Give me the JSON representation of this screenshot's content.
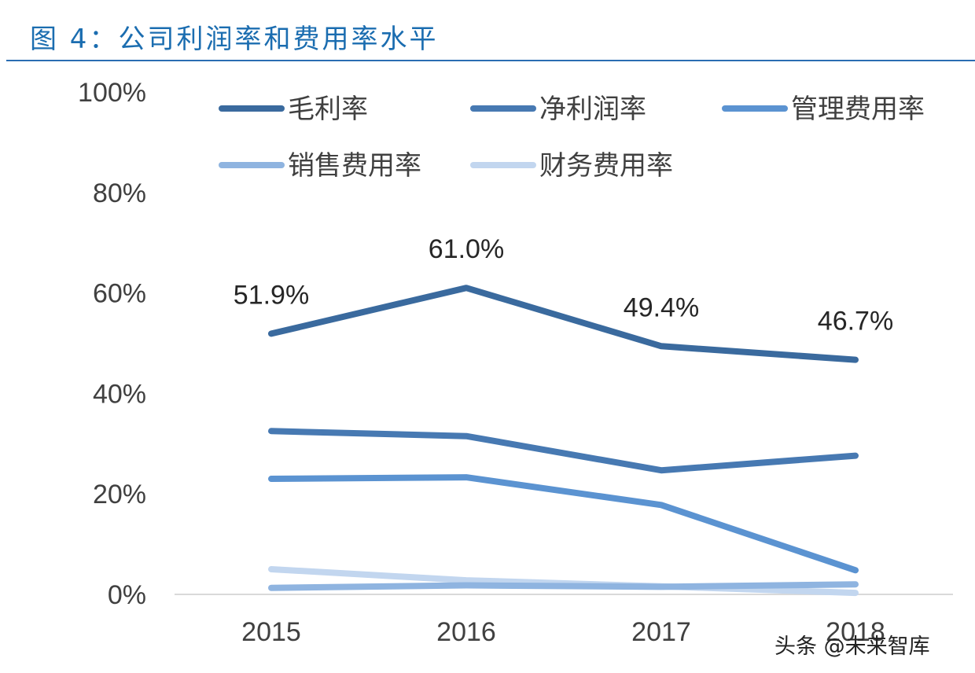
{
  "figure_title": "图 4：公司利润率和费用率水平",
  "watermark": "头条 @未来智库",
  "chart_data": {
    "type": "line",
    "categories": [
      "2015",
      "2016",
      "2017",
      "2018"
    ],
    "ylim": [
      0,
      100
    ],
    "y_ticks": [
      "0%",
      "20%",
      "40%",
      "60%",
      "80%",
      "100%"
    ],
    "grid": false,
    "legend_position": "top",
    "series": [
      {
        "name": "毛利率",
        "values": [
          51.9,
          61.0,
          49.4,
          46.7
        ],
        "color": "#3a6a9e",
        "labels": [
          "51.9%",
          "61.0%",
          "49.4%",
          "46.7%"
        ]
      },
      {
        "name": "净利润率",
        "values": [
          32.5,
          31.5,
          24.7,
          27.6
        ],
        "color": "#4779b2"
      },
      {
        "name": "管理费用率",
        "values": [
          23.0,
          23.3,
          17.8,
          4.8
        ],
        "color": "#5b93d1"
      },
      {
        "name": "销售费用率",
        "values": [
          1.3,
          1.8,
          1.5,
          2.0
        ],
        "color": "#8fb4e0"
      },
      {
        "name": "财务费用率",
        "values": [
          5.0,
          2.8,
          1.6,
          0.3
        ],
        "color": "#c2d6ef"
      }
    ]
  }
}
